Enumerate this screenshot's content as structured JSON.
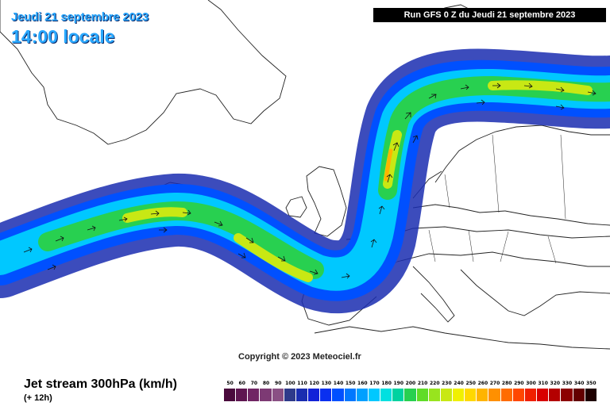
{
  "header": {
    "date": "Jeudi 21 septembre 2023",
    "time": "14:00 locale",
    "run": "Run GFS 0 Z du Jeudi 21 septembre 2023"
  },
  "copyright": "Copyright © 2023 Meteociel.fr",
  "legend": {
    "title": "Jet stream 300hPa (km/h)",
    "subtitle": "(+ 12h)",
    "scale": [
      {
        "value": "50",
        "color": "#4a0a3c"
      },
      {
        "value": "60",
        "color": "#5e1650"
      },
      {
        "value": "70",
        "color": "#702564"
      },
      {
        "value": "80",
        "color": "#7d3a74"
      },
      {
        "value": "90",
        "color": "#8a5084"
      },
      {
        "value": "100",
        "color": "#2e3a8a"
      },
      {
        "value": "110",
        "color": "#1a2db0"
      },
      {
        "value": "120",
        "color": "#1222d8"
      },
      {
        "value": "130",
        "color": "#0a30f0"
      },
      {
        "value": "140",
        "color": "#0050ff"
      },
      {
        "value": "150",
        "color": "#0078ff"
      },
      {
        "value": "160",
        "color": "#00a0ff"
      },
      {
        "value": "170",
        "color": "#00c8ff"
      },
      {
        "value": "180",
        "color": "#00e0e0"
      },
      {
        "value": "190",
        "color": "#00d2a0"
      },
      {
        "value": "200",
        "color": "#28d050"
      },
      {
        "value": "210",
        "color": "#60dc28"
      },
      {
        "value": "220",
        "color": "#98e41e"
      },
      {
        "value": "230",
        "color": "#c8e814"
      },
      {
        "value": "240",
        "color": "#f0f000"
      },
      {
        "value": "250",
        "color": "#ffd800"
      },
      {
        "value": "260",
        "color": "#ffb400"
      },
      {
        "value": "270",
        "color": "#ff9000"
      },
      {
        "value": "280",
        "color": "#ff6c00"
      },
      {
        "value": "290",
        "color": "#ff4800"
      },
      {
        "value": "300",
        "color": "#f02000"
      },
      {
        "value": "310",
        "color": "#d80000"
      },
      {
        "value": "320",
        "color": "#b40000"
      },
      {
        "value": "330",
        "color": "#8c0000"
      },
      {
        "value": "340",
        "color": "#640000"
      },
      {
        "value": "350",
        "color": "#1e0000"
      }
    ]
  }
}
